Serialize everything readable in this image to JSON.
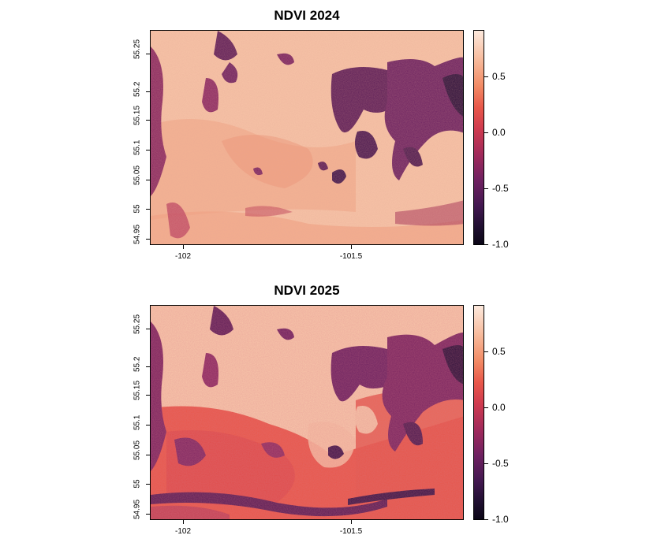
{
  "panels": [
    {
      "title": "NDVI 2024",
      "year": 2024,
      "x_ticks": [
        {
          "value": -102,
          "label": "-102"
        },
        {
          "value": -101.5,
          "label": "-101.5"
        }
      ],
      "y_ticks": [
        {
          "value": 54.95,
          "label": "54.95"
        },
        {
          "value": 55,
          "label": "55"
        },
        {
          "value": 55.05,
          "label": "55.05"
        },
        {
          "value": 55.1,
          "label": "55.1"
        },
        {
          "value": 55.15,
          "label": "55.15"
        },
        {
          "value": 55.2,
          "label": "55.2"
        },
        {
          "value": 55.25,
          "label": "55.25"
        }
      ],
      "legend_ticks": [
        {
          "value": 0.5,
          "label": "0.5"
        },
        {
          "value": 0.0,
          "label": "0.0"
        },
        {
          "value": -0.5,
          "label": "-0.5"
        },
        {
          "value": -1.0,
          "label": "-1.0"
        }
      ]
    },
    {
      "title": "NDVI 2025",
      "year": 2025,
      "x_ticks": [
        {
          "value": -102,
          "label": "-102"
        },
        {
          "value": -101.5,
          "label": "-101.5"
        }
      ],
      "y_ticks": [
        {
          "value": 54.95,
          "label": "54.95"
        },
        {
          "value": 55,
          "label": "55"
        },
        {
          "value": 55.05,
          "label": "55.05"
        },
        {
          "value": 55.1,
          "label": "55.1"
        },
        {
          "value": 55.15,
          "label": "55.15"
        },
        {
          "value": 55.2,
          "label": "55.2"
        },
        {
          "value": 55.25,
          "label": "55.25"
        }
      ],
      "legend_ticks": [
        {
          "value": 0.5,
          "label": "0.5"
        },
        {
          "value": 0.0,
          "label": "0.0"
        },
        {
          "value": -0.5,
          "label": "-0.5"
        },
        {
          "value": -1.0,
          "label": "-1.0"
        }
      ]
    }
  ],
  "map_extent": {
    "xlim": [
      -102.08,
      -101.2
    ],
    "ylim": [
      54.945,
      55.29
    ]
  },
  "legend_range": [
    -1.0,
    0.9
  ],
  "colors": {
    "high": "#fce9dd",
    "mid_high": "#f28a64",
    "mid": "#cf3b4f",
    "low": "#6f2161",
    "lowest": "#0b0616",
    "background": "#f6c3a6"
  },
  "colormap": "rocket"
}
